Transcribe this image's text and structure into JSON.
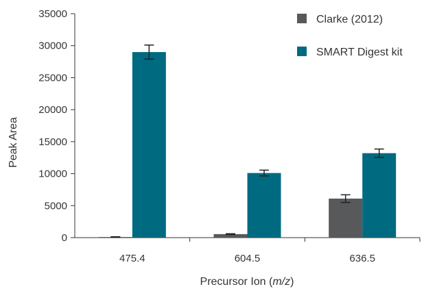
{
  "chart_data": {
    "type": "bar",
    "title": "",
    "xlabel": "Precursor Ion (",
    "xlabel_italic": "m/z",
    "xlabel_suffix": ")",
    "ylabel": "Peak Area",
    "ylim": [
      0,
      35000
    ],
    "yticks": [
      0,
      5000,
      10000,
      15000,
      20000,
      25000,
      30000,
      35000
    ],
    "ytick_labels": [
      "0",
      "5000",
      "10000",
      "15000",
      "20000",
      "25000",
      "30000",
      "35000"
    ],
    "categories": [
      "475.4",
      "604.5",
      "636.5"
    ],
    "grid": false,
    "legend_position": "top-right",
    "series": [
      {
        "name": "Clarke (2012)",
        "color": "#58595b",
        "values": [
          100,
          550,
          6100
        ],
        "errors": [
          40,
          60,
          600
        ]
      },
      {
        "name": "SMART Digest kit",
        "color": "#006a80",
        "values": [
          29000,
          10100,
          13200
        ],
        "errors": [
          1100,
          450,
          650
        ]
      }
    ]
  }
}
